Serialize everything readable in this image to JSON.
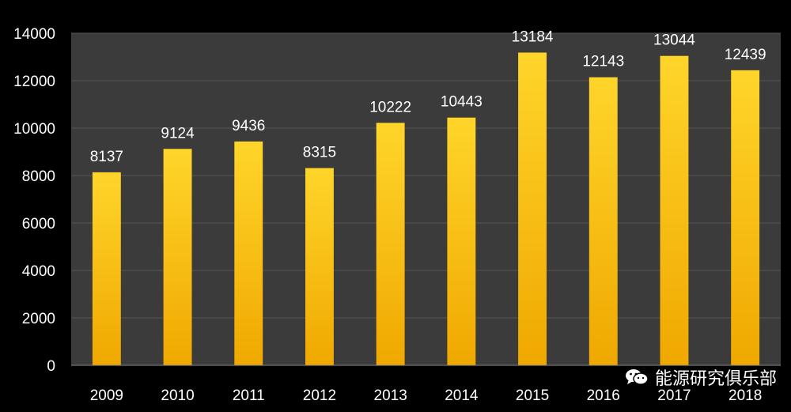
{
  "chart_data": {
    "type": "bar",
    "categories": [
      "2009",
      "2010",
      "2011",
      "2012",
      "2013",
      "2014",
      "2015",
      "2016",
      "2017",
      "2018"
    ],
    "values": [
      8137,
      9124,
      9436,
      8315,
      10222,
      10443,
      13184,
      12143,
      13044,
      12439
    ],
    "data_labels": [
      "8137",
      "9124",
      "9436",
      "8315",
      "10222",
      "10443",
      "13184",
      "12143",
      "13044",
      "12439"
    ],
    "y_ticks": [
      "0",
      "2000",
      "4000",
      "6000",
      "8000",
      "10000",
      "12000",
      "14000"
    ],
    "ylim": [
      0,
      14000
    ],
    "grid": true,
    "title": "",
    "xlabel": "",
    "ylabel": ""
  },
  "colors": {
    "background": "#000000",
    "plot_background": "#3b3b3b",
    "gridline": "#555555",
    "bar_top": "#ffd52a",
    "bar_bottom": "#f0a800",
    "text": "#ffffff"
  },
  "watermark": {
    "icon": "wechat-icon",
    "text": "能源研究俱乐部"
  }
}
